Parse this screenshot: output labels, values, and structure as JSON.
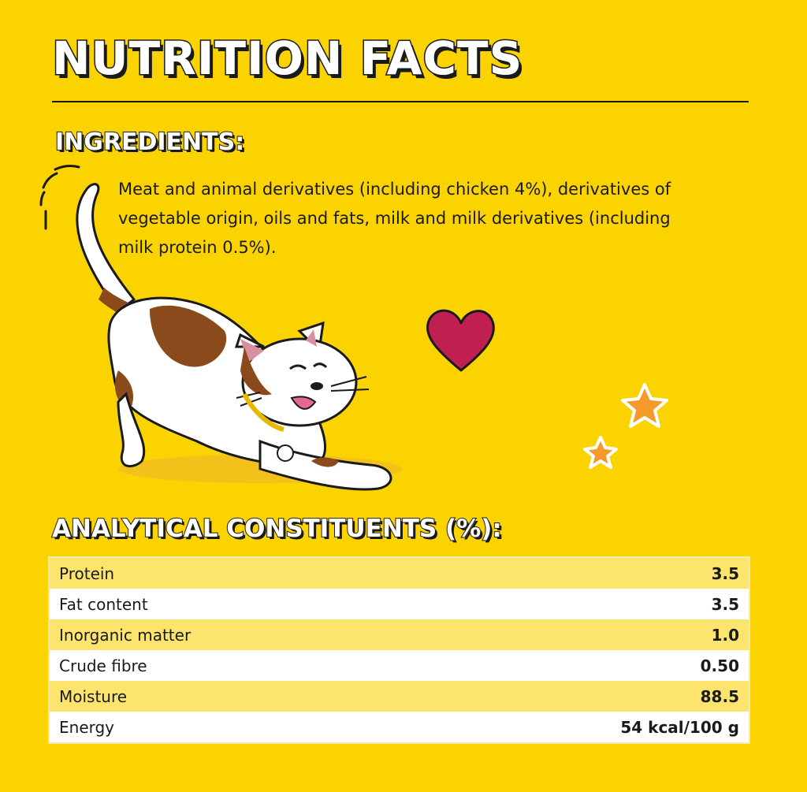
{
  "title": "NUTRITION FACTS",
  "ingredients": {
    "heading": "INGREDIENTS:",
    "text": "Meat and animal derivatives (including chicken 4%), derivatives of vegetable origin, oils and fats, milk and milk derivatives (including milk protein 0.5%)."
  },
  "analytical": {
    "heading": "ANALYTICAL CONSTITUENTS (%):",
    "rows": [
      {
        "label": "Protein",
        "value": "3.5"
      },
      {
        "label": "Fat content",
        "value": "3.5"
      },
      {
        "label": "Inorganic matter",
        "value": "1.0"
      },
      {
        "label": "Crude fibre",
        "value": "0.50"
      },
      {
        "label": "Moisture",
        "value": "88.5"
      },
      {
        "label": "Energy",
        "value": "54 kcal/100 g"
      }
    ]
  },
  "colors": {
    "background": "#fbd300",
    "row_highlight": "#fde56d",
    "row_plain": "#ffffff",
    "heart": "#c0204f",
    "star": "#f59a2a",
    "cat_patch": "#8a4a1c"
  }
}
